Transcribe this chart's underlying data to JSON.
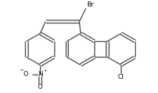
{
  "bg_color": "#ffffff",
  "bond_color": "#4a4a4a",
  "text_color": "#000000",
  "line_width": 1.0,
  "figsize": [
    2.21,
    1.31
  ],
  "dpi": 100,
  "xlim": [
    0,
    221
  ],
  "ylim": [
    0,
    131
  ]
}
